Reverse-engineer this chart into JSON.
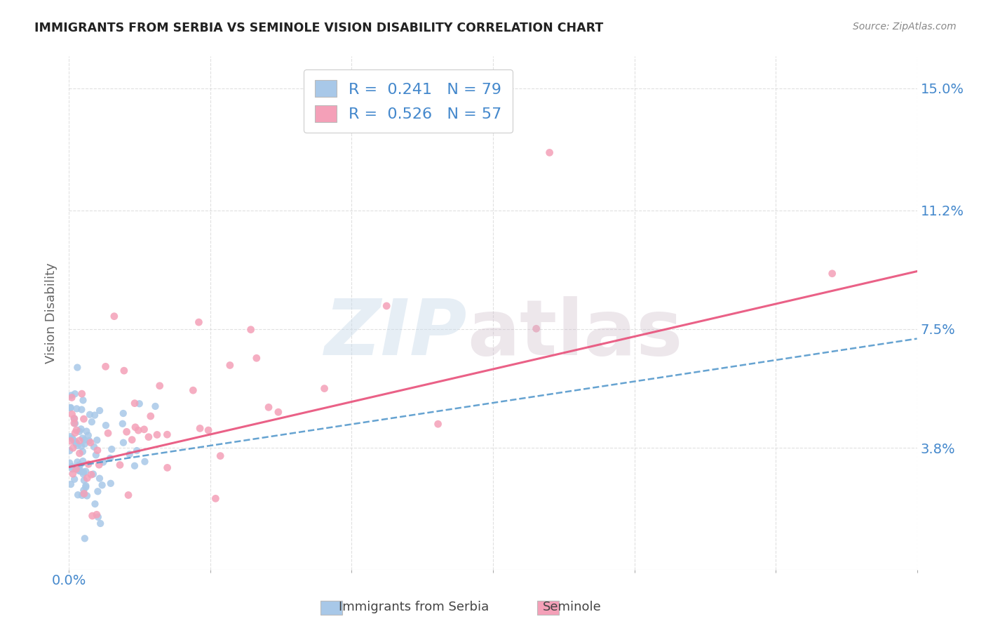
{
  "title": "IMMIGRANTS FROM SERBIA VS SEMINOLE VISION DISABILITY CORRELATION CHART",
  "source": "Source: ZipAtlas.com",
  "ylabel": "Vision Disability",
  "ytick_labels": [
    "15.0%",
    "11.2%",
    "7.5%",
    "3.8%"
  ],
  "ytick_values": [
    0.15,
    0.112,
    0.075,
    0.038
  ],
  "xlim": [
    0.0,
    0.3
  ],
  "ylim": [
    0.0,
    0.16
  ],
  "serbia_color": "#a8c8e8",
  "seminole_color": "#f4a0b8",
  "serbia_line_color": "#5599cc",
  "seminole_line_color": "#e8507a",
  "background_color": "#ffffff",
  "grid_color": "#dddddd",
  "title_color": "#222222",
  "axis_label_color": "#4488cc",
  "serbia_N": 79,
  "seminole_N": 57,
  "serbia_R": 0.241,
  "seminole_R": 0.526,
  "serbia_line_x0": 0.0,
  "serbia_line_y0": 0.032,
  "serbia_line_x1": 0.3,
  "serbia_line_y1": 0.072,
  "seminole_line_x0": 0.0,
  "seminole_line_y0": 0.032,
  "seminole_line_x1": 0.3,
  "seminole_line_y1": 0.093
}
